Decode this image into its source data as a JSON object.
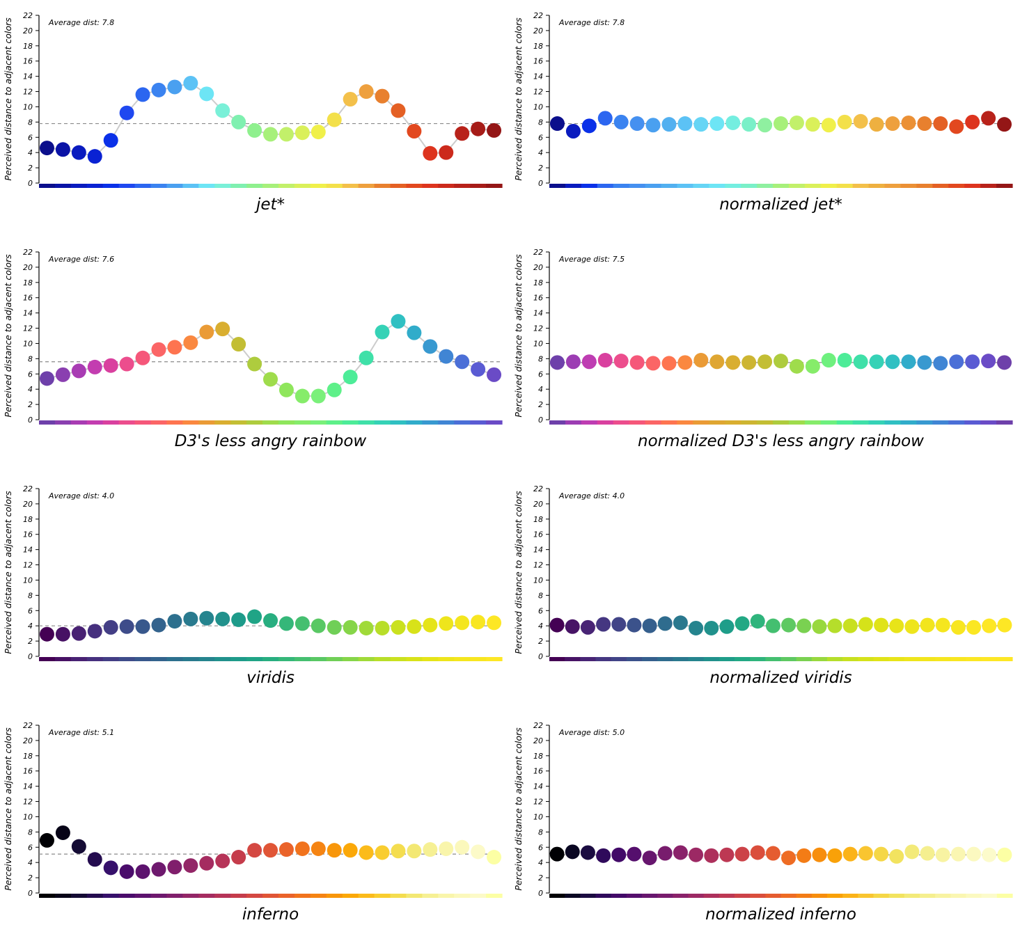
{
  "ylabel": "Perceived distance to adjacent colors",
  "chart_data": [
    {
      "type": "scatter",
      "title": "jet*",
      "avg_label": "Average dist: 7.8",
      "average": 7.8,
      "connected": true,
      "ylim": [
        0,
        22
      ],
      "yticks": [
        0,
        2,
        4,
        6,
        8,
        10,
        12,
        14,
        16,
        18,
        20,
        22
      ],
      "values": [
        4.6,
        4.4,
        4.0,
        3.5,
        5.6,
        9.2,
        11.6,
        12.2,
        12.6,
        13.1,
        11.7,
        9.5,
        8.0,
        6.9,
        6.4,
        6.4,
        6.6,
        6.7,
        8.3,
        11.0,
        12.0,
        11.4,
        9.5,
        6.8,
        3.9,
        4.0,
        6.5,
        7.1,
        6.9
      ],
      "colors": [
        "#0b0f8c",
        "#0a13a6",
        "#0a1bbf",
        "#0a22d3",
        "#0a30e8",
        "#1f48f0",
        "#2c66f0",
        "#3b83f0",
        "#4aa0f0",
        "#5cc2f5",
        "#6de5f5",
        "#7af0d8",
        "#7ff0b0",
        "#8ff08e",
        "#a7f07a",
        "#c2f06a",
        "#daf05a",
        "#f0f04a",
        "#f3e04a",
        "#f3c04a",
        "#eea03e",
        "#e8802e",
        "#e46024",
        "#e2481f",
        "#dd341e",
        "#cc2a1c",
        "#b8221a",
        "#a61c18",
        "#941616"
      ]
    },
    {
      "type": "scatter",
      "title": "normalized jet*",
      "avg_label": "Average dist: 7.8",
      "average": 7.8,
      "connected": false,
      "ylim": [
        0,
        22
      ],
      "yticks": [
        0,
        2,
        4,
        6,
        8,
        10,
        12,
        14,
        16,
        18,
        20,
        22
      ],
      "values": [
        7.8,
        6.8,
        7.5,
        8.5,
        8.0,
        7.8,
        7.6,
        7.7,
        7.8,
        7.7,
        7.8,
        7.9,
        7.7,
        7.6,
        7.8,
        7.9,
        7.7,
        7.6,
        8.0,
        8.1,
        7.7,
        7.8,
        7.9,
        7.8,
        7.8,
        7.4,
        8.0,
        8.5,
        7.7
      ],
      "colors": [
        "#0b0f8c",
        "#0a1bbf",
        "#0a30e8",
        "#2c66f0",
        "#3b83f0",
        "#4590f0",
        "#4aa0f0",
        "#52b0f0",
        "#5cc2f5",
        "#66d5f5",
        "#6de5f5",
        "#74eee0",
        "#7af0c8",
        "#8ff0a0",
        "#a7f07a",
        "#c2f06a",
        "#daf05a",
        "#f0f04a",
        "#f3e04a",
        "#f3c04a",
        "#eeb040",
        "#eea03e",
        "#eb9035",
        "#e8802e",
        "#e46024",
        "#e2481f",
        "#dd341e",
        "#b8221a",
        "#941616"
      ]
    },
    {
      "type": "scatter",
      "title": "D3's less angry rainbow",
      "avg_label": "Average dist: 7.6",
      "average": 7.6,
      "connected": true,
      "ylim": [
        0,
        22
      ],
      "yticks": [
        0,
        2,
        4,
        6,
        8,
        10,
        12,
        14,
        16,
        18,
        20,
        22
      ],
      "values": [
        5.4,
        5.9,
        6.4,
        6.9,
        7.1,
        7.3,
        8.1,
        9.2,
        9.5,
        10.1,
        11.5,
        11.9,
        9.9,
        7.3,
        5.3,
        3.9,
        3.1,
        3.1,
        3.9,
        5.6,
        8.1,
        11.5,
        12.9,
        11.4,
        9.6,
        8.3,
        7.6,
        6.6,
        5.9
      ],
      "colors": [
        "#6e40aa",
        "#8a3fb0",
        "#a83cb3",
        "#c33db0",
        "#d9409f",
        "#ec4d8d",
        "#f5577a",
        "#fb6566",
        "#fe7450",
        "#fa8840",
        "#ea9b36",
        "#d9ae30",
        "#c3be34",
        "#aecc3e",
        "#9fdc4c",
        "#8fe65c",
        "#86ec6a",
        "#7af07a",
        "#5ef089",
        "#4dec98",
        "#3fe0a8",
        "#35d2b6",
        "#30c0c2",
        "#31acca",
        "#3899d0",
        "#4085d4",
        "#4b6fd7",
        "#5a5bd3",
        "#6a4bc6"
      ]
    },
    {
      "type": "scatter",
      "title": "normalized D3's less angry rainbow",
      "avg_label": "Average dist: 7.5",
      "average": 7.5,
      "connected": false,
      "ylim": [
        0,
        22
      ],
      "yticks": [
        0,
        2,
        4,
        6,
        8,
        10,
        12,
        14,
        16,
        18,
        20,
        22
      ],
      "values": [
        7.5,
        7.6,
        7.6,
        7.8,
        7.7,
        7.5,
        7.4,
        7.4,
        7.5,
        7.8,
        7.6,
        7.5,
        7.5,
        7.6,
        7.7,
        7.0,
        7.0,
        7.8,
        7.8,
        7.6,
        7.6,
        7.6,
        7.6,
        7.5,
        7.4,
        7.6,
        7.6,
        7.7,
        7.5
      ],
      "colors": [
        "#6e40aa",
        "#9c3db3",
        "#be3db2",
        "#d9409f",
        "#ec4d8d",
        "#f5577a",
        "#fb6566",
        "#fe7450",
        "#fa8840",
        "#ea9b36",
        "#dfa632",
        "#d9ae30",
        "#cdb532",
        "#c3be34",
        "#aecc3e",
        "#9fdc4c",
        "#86ec6a",
        "#6ef07e",
        "#4dec98",
        "#3fe0a8",
        "#35d2b6",
        "#30c0c2",
        "#31acca",
        "#3899d0",
        "#4085d4",
        "#4b6fd7",
        "#5a5bd3",
        "#6a4bc6",
        "#6e40aa"
      ]
    },
    {
      "type": "scatter",
      "title": "viridis",
      "avg_label": "Average dist: 4.0",
      "average": 4.0,
      "connected": false,
      "ylim": [
        0,
        22
      ],
      "yticks": [
        0,
        2,
        4,
        6,
        8,
        10,
        12,
        14,
        16,
        18,
        20,
        22
      ],
      "values": [
        2.9,
        2.9,
        3.0,
        3.3,
        3.8,
        3.9,
        3.9,
        4.1,
        4.6,
        4.9,
        5.0,
        4.9,
        4.8,
        5.2,
        4.7,
        4.3,
        4.3,
        4.0,
        3.8,
        3.8,
        3.7,
        3.7,
        3.8,
        3.9,
        4.1,
        4.3,
        4.4,
        4.5,
        4.4
      ],
      "colors": [
        "#440154",
        "#471164",
        "#482173",
        "#46307e",
        "#433e85",
        "#3e4c8a",
        "#38588c",
        "#33638d",
        "#2d708e",
        "#297a8e",
        "#25848e",
        "#21918c",
        "#1e9b8a",
        "#20a486",
        "#28ae80",
        "#35b779",
        "#45bf70",
        "#59c864",
        "#70cf57",
        "#86d549",
        "#a0da39",
        "#b8de29",
        "#cae11f",
        "#d8e219",
        "#e5e419",
        "#eee51c",
        "#f4e61e",
        "#f8e621",
        "#fde725"
      ]
    },
    {
      "type": "scatter",
      "title": "normalized viridis",
      "avg_label": "Average dist: 4.0",
      "average": 4.0,
      "connected": false,
      "ylim": [
        0,
        22
      ],
      "yticks": [
        0,
        2,
        4,
        6,
        8,
        10,
        12,
        14,
        16,
        18,
        20,
        22
      ],
      "values": [
        4.1,
        3.9,
        3.8,
        4.2,
        4.2,
        4.1,
        4.0,
        4.3,
        4.4,
        3.7,
        3.7,
        3.9,
        4.3,
        4.6,
        4.0,
        4.1,
        4.0,
        3.9,
        4.0,
        4.0,
        4.2,
        4.1,
        4.0,
        3.9,
        4.1,
        4.1,
        3.8,
        3.8,
        4.0,
        4.1
      ],
      "colors": [
        "#440154",
        "#471365",
        "#482475",
        "#453781",
        "#414487",
        "#3b528b",
        "#355f8d",
        "#2f6c8e",
        "#2a788e",
        "#25848e",
        "#21918c",
        "#1e9d89",
        "#22a884",
        "#2fb47c",
        "#44bf70",
        "#5ec962",
        "#7ad151",
        "#98d83e",
        "#b5de2b",
        "#c8e020",
        "#d5e21a",
        "#e0e318",
        "#e8e419",
        "#eee51c",
        "#f2e51d",
        "#f5e61f",
        "#f8e621",
        "#fbe723",
        "#fde725",
        "#fde725"
      ]
    },
    {
      "type": "scatter",
      "title": "inferno",
      "avg_label": "Average dist: 5.1",
      "average": 5.1,
      "connected": false,
      "ylim": [
        0,
        22
      ],
      "yticks": [
        0,
        2,
        4,
        6,
        8,
        10,
        12,
        14,
        16,
        18,
        20,
        22
      ],
      "values": [
        6.9,
        7.9,
        6.1,
        4.4,
        3.3,
        2.8,
        2.8,
        3.1,
        3.4,
        3.6,
        3.9,
        4.2,
        4.7,
        5.6,
        5.6,
        5.7,
        5.8,
        5.8,
        5.6,
        5.6,
        5.3,
        5.3,
        5.5,
        5.5,
        5.7,
        5.8,
        6.0,
        5.4,
        4.7
      ],
      "colors": [
        "#000004",
        "#070417",
        "#140b34",
        "#240c4f",
        "#36106b",
        "#4a0c6b",
        "#5c126e",
        "#6e196e",
        "#801f6c",
        "#932667",
        "#a52c60",
        "#b63458",
        "#c53c4b",
        "#d44842",
        "#e05536",
        "#ea632a",
        "#f1731d",
        "#f58413",
        "#f8960a",
        "#fba808",
        "#fbbb1b",
        "#f9cd2f",
        "#f4dd4f",
        "#f3e873",
        "#f6f094",
        "#f9f5ab",
        "#fbf8bc",
        "#fcfac8",
        "#fcffa4"
      ]
    },
    {
      "type": "scatter",
      "title": "normalized inferno",
      "avg_label": "Average dist: 5.0",
      "average": 5.0,
      "connected": false,
      "ylim": [
        0,
        22
      ],
      "yticks": [
        0,
        2,
        4,
        6,
        8,
        10,
        12,
        14,
        16,
        18,
        20,
        22
      ],
      "values": [
        5.1,
        5.4,
        5.3,
        4.9,
        5.0,
        5.1,
        4.6,
        5.2,
        5.3,
        5.0,
        4.9,
        5.0,
        5.1,
        5.3,
        5.2,
        4.6,
        4.9,
        5.0,
        4.9,
        5.1,
        5.2,
        5.1,
        4.8,
        5.4,
        5.2,
        5.0,
        5.1,
        5.1,
        5.0,
        5.0
      ],
      "colors": [
        "#000004",
        "#0a0722",
        "#1b0c41",
        "#2f0a5b",
        "#420a68",
        "#550f6d",
        "#67166e",
        "#781c6d",
        "#8a226a",
        "#9c2964",
        "#ad305c",
        "#bd3853",
        "#cc4248",
        "#da4e3c",
        "#e55c30",
        "#ee6c24",
        "#f37c16",
        "#f78e0d",
        "#f9a108",
        "#fbb319",
        "#f9c530",
        "#f5d747",
        "#f2e35f",
        "#f3ea79",
        "#f5ef8f",
        "#f8f3a2",
        "#faf6b2",
        "#fbf9c0",
        "#fcfbcb",
        "#fcffa4"
      ]
    }
  ]
}
